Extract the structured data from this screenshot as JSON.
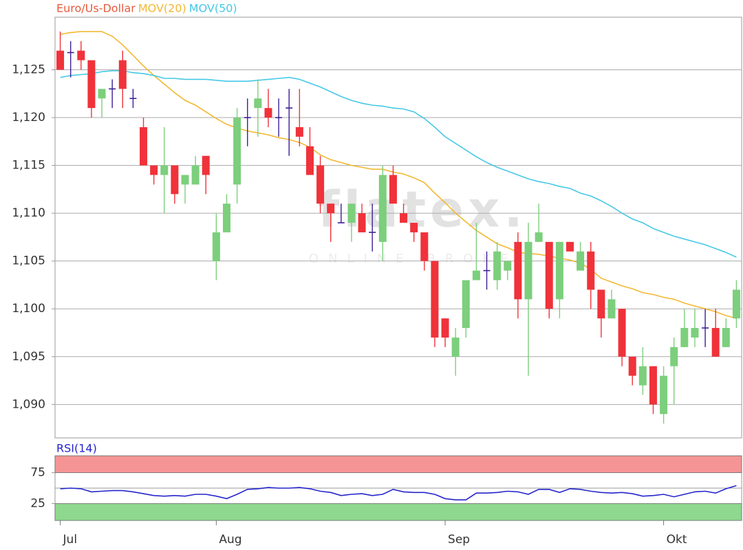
{
  "chart_data": [
    {
      "type": "candlestick",
      "watermark": "flatex.",
      "watermark_sub": "ONLINE BROKER",
      "ylim": [
        1.0865,
        1.1305
      ],
      "yticks": [
        {
          "value": 1.09,
          "label": "1,090"
        },
        {
          "value": 1.095,
          "label": "1,095"
        },
        {
          "value": 1.1,
          "label": "1,100"
        },
        {
          "value": 1.105,
          "label": "1,105"
        },
        {
          "value": 1.11,
          "label": "1,110"
        },
        {
          "value": 1.115,
          "label": "1,115"
        },
        {
          "value": 1.12,
          "label": "1,120"
        },
        {
          "value": 1.125,
          "label": "1,125"
        }
      ],
      "grid": true,
      "up_color": "#7ccf7c",
      "down_color": "#f0323a",
      "doji_color": "#3c1e96",
      "series": [
        {
          "name": "Euro/Us-Dollar",
          "color": "#e85a3c",
          "open": [
            1.127,
            1.1268,
            1.127,
            1.126,
            1.122,
            1.123,
            1.126,
            1.122,
            1.119,
            1.115,
            1.114,
            1.115,
            1.113,
            1.113,
            1.116,
            1.105,
            1.108,
            1.113,
            1.12,
            1.121,
            1.121,
            1.12,
            1.121,
            1.119,
            1.117,
            1.115,
            1.111,
            1.109,
            1.109,
            1.11,
            1.108,
            1.107,
            1.114,
            1.11,
            1.109,
            1.108,
            1.105,
            1.099,
            1.095,
            1.098,
            1.103,
            1.104,
            1.103,
            1.104,
            1.107,
            1.101,
            1.107,
            1.107,
            1.101,
            1.107,
            1.104,
            1.106,
            1.102,
            1.099,
            1.1,
            1.095,
            1.092,
            1.094,
            1.089,
            1.094,
            1.096,
            1.097,
            1.098,
            1.098,
            1.096,
            1.099
          ],
          "high": [
            1.129,
            1.128,
            1.128,
            1.126,
            1.123,
            1.124,
            1.127,
            1.123,
            1.12,
            1.115,
            1.119,
            1.115,
            1.114,
            1.116,
            1.116,
            1.11,
            1.112,
            1.121,
            1.122,
            1.124,
            1.123,
            1.122,
            1.123,
            1.123,
            1.119,
            1.116,
            1.111,
            1.111,
            1.111,
            1.111,
            1.111,
            1.115,
            1.115,
            1.111,
            1.109,
            1.108,
            1.105,
            1.099,
            1.098,
            1.103,
            1.109,
            1.106,
            1.107,
            1.105,
            1.108,
            1.109,
            1.111,
            1.107,
            1.107,
            1.107,
            1.107,
            1.107,
            1.102,
            1.102,
            1.1,
            1.095,
            1.096,
            1.094,
            1.094,
            1.097,
            1.1,
            1.1,
            1.1,
            1.1,
            1.099,
            1.103
          ],
          "low": [
            1.125,
            1.1242,
            1.125,
            1.12,
            1.12,
            1.121,
            1.121,
            1.121,
            1.115,
            1.113,
            1.11,
            1.111,
            1.111,
            1.113,
            1.112,
            1.103,
            1.108,
            1.111,
            1.117,
            1.118,
            1.119,
            1.118,
            1.116,
            1.117,
            1.114,
            1.11,
            1.107,
            1.109,
            1.107,
            1.108,
            1.106,
            1.105,
            1.111,
            1.109,
            1.107,
            1.104,
            1.096,
            1.096,
            1.093,
            1.097,
            1.103,
            1.102,
            1.102,
            1.103,
            1.099,
            1.093,
            1.107,
            1.099,
            1.099,
            1.106,
            1.104,
            1.1,
            1.097,
            1.099,
            1.094,
            1.092,
            1.091,
            1.089,
            1.088,
            1.09,
            1.096,
            1.096,
            1.096,
            1.095,
            1.096,
            1.098
          ],
          "close": [
            1.125,
            1.1268,
            1.126,
            1.121,
            1.123,
            1.123,
            1.123,
            1.122,
            1.115,
            1.114,
            1.115,
            1.112,
            1.114,
            1.115,
            1.114,
            1.108,
            1.111,
            1.12,
            1.12,
            1.122,
            1.12,
            1.12,
            1.121,
            1.118,
            1.114,
            1.111,
            1.11,
            1.109,
            1.111,
            1.108,
            1.108,
            1.114,
            1.111,
            1.109,
            1.108,
            1.105,
            1.097,
            1.097,
            1.097,
            1.103,
            1.104,
            1.104,
            1.106,
            1.105,
            1.101,
            1.107,
            1.108,
            1.1,
            1.107,
            1.106,
            1.106,
            1.102,
            1.099,
            1.101,
            1.095,
            1.093,
            1.094,
            1.09,
            1.093,
            1.096,
            1.098,
            1.098,
            1.098,
            1.095,
            1.098,
            1.102
          ]
        },
        {
          "name": "MOV(20)",
          "color": "#f2b830",
          "values": [
            1.1287,
            1.1289,
            1.129,
            1.129,
            1.129,
            1.1285,
            1.1276,
            1.1265,
            1.1254,
            1.1244,
            1.1235,
            1.1226,
            1.1218,
            1.1213,
            1.1206,
            1.1199,
            1.1193,
            1.1189,
            1.1186,
            1.1184,
            1.1182,
            1.1179,
            1.1177,
            1.1174,
            1.1169,
            1.1161,
            1.1156,
            1.1153,
            1.115,
            1.1148,
            1.1146,
            1.1146,
            1.1143,
            1.1141,
            1.1137,
            1.1132,
            1.1121,
            1.1111,
            1.11,
            1.1091,
            1.1082,
            1.1075,
            1.1068,
            1.1064,
            1.1059,
            1.1058,
            1.1057,
            1.1055,
            1.1053,
            1.1051,
            1.1048,
            1.1041,
            1.1032,
            1.1028,
            1.1024,
            1.1021,
            1.1017,
            1.1015,
            1.1012,
            1.101,
            1.1006,
            1.1003,
            1.1,
            1.0997,
            1.0993,
            1.099
          ]
        },
        {
          "name": "MOV(50)",
          "color": "#45c8e6",
          "values": [
            1.1242,
            1.1244,
            1.1245,
            1.1246,
            1.1248,
            1.1249,
            1.1249,
            1.1247,
            1.1246,
            1.1244,
            1.1241,
            1.1241,
            1.124,
            1.124,
            1.124,
            1.1239,
            1.1238,
            1.1238,
            1.1238,
            1.1239,
            1.124,
            1.1241,
            1.1242,
            1.124,
            1.1236,
            1.1232,
            1.1227,
            1.1222,
            1.1218,
            1.1215,
            1.1213,
            1.1212,
            1.121,
            1.1209,
            1.1206,
            1.1199,
            1.119,
            1.118,
            1.1173,
            1.1166,
            1.1159,
            1.1153,
            1.1148,
            1.1144,
            1.114,
            1.1136,
            1.1133,
            1.1131,
            1.1128,
            1.1126,
            1.1121,
            1.1118,
            1.1113,
            1.1107,
            1.11,
            1.1094,
            1.109,
            1.1084,
            1.108,
            1.1076,
            1.1073,
            1.107,
            1.1067,
            1.1063,
            1.1059,
            1.1054
          ]
        }
      ]
    },
    {
      "type": "line",
      "ylim": [
        -2.3,
        102.3
      ],
      "yticks": [
        25,
        75
      ],
      "midline": 50,
      "band_colors": [
        "#8fd88f",
        "#f59494"
      ],
      "categories": [
        "Jul",
        null,
        null,
        null,
        null,
        null,
        null,
        null,
        null,
        null,
        null,
        null,
        null,
        null,
        null,
        "Aug",
        null,
        null,
        null,
        null,
        null,
        null,
        null,
        null,
        null,
        null,
        null,
        null,
        null,
        null,
        null,
        null,
        null,
        null,
        null,
        null,
        null,
        "Sep",
        null,
        null,
        null,
        null,
        null,
        null,
        null,
        null,
        null,
        null,
        null,
        null,
        null,
        null,
        null,
        null,
        null,
        null,
        null,
        null,
        "Okt",
        null,
        null,
        null,
        null,
        null,
        null,
        null
      ],
      "series": [
        {
          "name": "RSI(14)",
          "color": "#2424cc",
          "values": [
            49,
            50,
            49,
            44,
            45,
            46,
            46,
            44,
            41,
            38,
            37,
            38,
            37,
            40,
            40,
            37,
            33,
            40,
            48,
            49,
            51,
            50,
            50,
            51,
            49,
            45,
            43,
            38,
            40,
            41,
            38,
            40,
            48,
            44,
            43,
            43,
            40,
            33,
            31,
            31,
            42,
            42,
            43,
            45,
            44,
            40,
            48,
            48,
            43,
            49,
            48,
            45,
            43,
            42,
            43,
            41,
            37,
            38,
            40,
            36,
            40,
            44,
            45,
            42,
            49,
            54
          ]
        }
      ]
    }
  ]
}
